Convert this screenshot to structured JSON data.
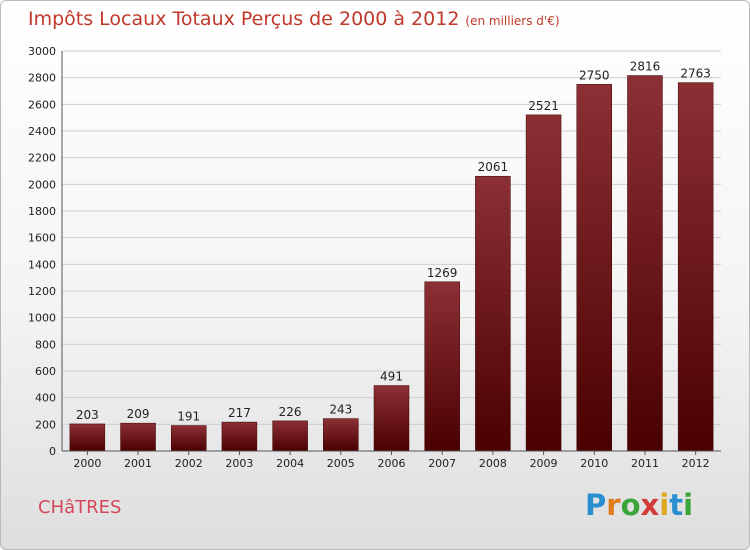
{
  "header": {
    "title": "Impôts Locaux Totaux Perçus de 2000 à 2012",
    "unit": "(en milliers d'€)"
  },
  "footer": {
    "place": "CHâTRES",
    "logo": [
      {
        "ch": "P",
        "color": "#2a8fd0"
      },
      {
        "ch": "r",
        "color": "#e07b1e"
      },
      {
        "ch": "o",
        "color": "#3aa63a"
      },
      {
        "ch": "x",
        "color": "#d23a3a"
      },
      {
        "ch": "i",
        "color": "#e0a81e"
      },
      {
        "ch": "t",
        "color": "#2a8fd0"
      },
      {
        "ch": "i",
        "color": "#3aa63a"
      }
    ]
  },
  "chart_data": {
    "type": "bar",
    "title": "Impôts Locaux Totaux Perçus de 2000 à 2012",
    "categories": [
      "2000",
      "2001",
      "2002",
      "2003",
      "2004",
      "2005",
      "2006",
      "2007",
      "2008",
      "2009",
      "2010",
      "2011",
      "2012"
    ],
    "values": [
      203,
      209,
      191,
      217,
      226,
      243,
      491,
      1269,
      2061,
      2521,
      2750,
      2816,
      2763
    ],
    "yticks": [
      0,
      200,
      400,
      600,
      800,
      1000,
      1200,
      1400,
      1600,
      1800,
      2000,
      2200,
      2400,
      2600,
      2800,
      3000
    ],
    "ylim": [
      0,
      3000
    ],
    "grid": true,
    "bar_color_top": "#8c3035",
    "bar_color_bottom": "#4a0000"
  }
}
